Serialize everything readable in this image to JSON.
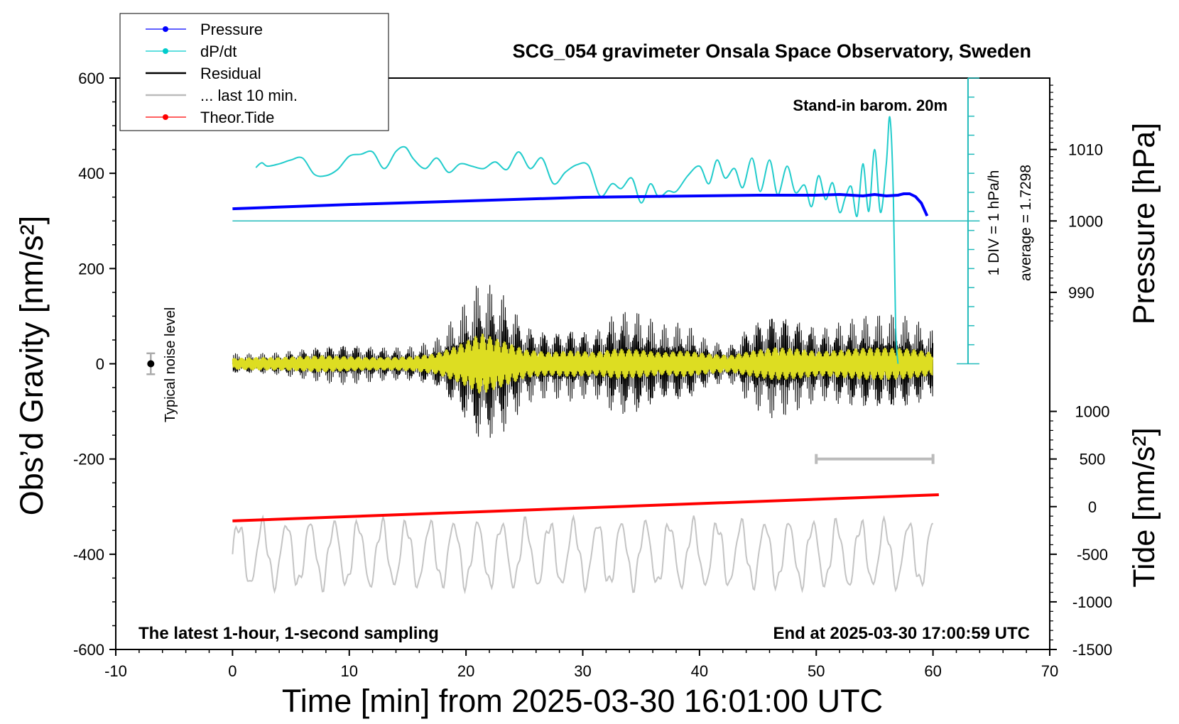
{
  "chart_data": {
    "type": "line",
    "title": "SCG_054 gravimeter Onsala Space Observatory, Sweden",
    "xlabel": "Time [min] from 2025-03-30 16:01:00 UTC",
    "ylabel_left": "Obs’d Gravity [nm/s²]",
    "ylabel_pressure": "Pressure [hPa]",
    "ylabel_tide": "Tide [nm/s²]",
    "xlim": [
      -10,
      70
    ],
    "ylim": [
      -600,
      600
    ],
    "xticks": [
      -10,
      0,
      10,
      20,
      30,
      40,
      50,
      60,
      70
    ],
    "yticks": [
      -600,
      -400,
      -200,
      0,
      200,
      400,
      600
    ],
    "xtick_labels": [
      "-10",
      "0",
      "10",
      "20",
      "30",
      "40",
      "50",
      "60",
      "70"
    ],
    "ytick_labels": [
      "-600",
      "-400",
      "-200",
      "0",
      "200",
      "400",
      "600"
    ],
    "pressure_axis": {
      "values": [
        990,
        1000,
        1010
      ],
      "labels": [
        "990",
        "1000",
        "1010"
      ],
      "gravity_at_1000": 300,
      "gravity_per_hpa": 15
    },
    "tide_axis": {
      "values": [
        -1500,
        -1000,
        -500,
        0,
        500,
        1000
      ],
      "labels": [
        "-1500",
        "-1000",
        "-500",
        "0",
        "500",
        "1000"
      ],
      "gravity_at_0": -300,
      "gravity_per_unit": 0.2
    },
    "legend": {
      "position": "top-left",
      "entries": [
        {
          "label": "Pressure",
          "color": "#0000ff",
          "style": "line-dot"
        },
        {
          "label": "dP/dt",
          "color": "#00cccc",
          "style": "line-dot"
        },
        {
          "label": "Residual",
          "color": "#000000",
          "style": "line"
        },
        {
          "label": "... last 10 min.",
          "color": "#bbbbbb",
          "style": "line"
        },
        {
          "label": "Theor.Tide",
          "color": "#ff0000",
          "style": "line-dot"
        }
      ]
    },
    "annotations": {
      "barometer": "Stand-in barom. 20m",
      "div_label": "1 DIV = 1 hPa/h",
      "average": "average = 1.7298",
      "noise": "Typical noise level",
      "bottom_left": "The latest 1-hour, 1-second sampling",
      "bottom_right": "End at 2025-03-30 17:00:59 UTC"
    },
    "noise_level": {
      "x": -7,
      "y": 0,
      "error": 22
    },
    "last10_range": [
      50,
      60
    ],
    "dpdt_scale": {
      "x": 63,
      "y0": 0,
      "y1": 600,
      "divisions": 15
    },
    "series": [
      {
        "name": "Pressure",
        "unit": "hPa",
        "x": [
          0,
          10,
          20,
          30,
          40,
          45,
          50,
          52,
          54,
          55,
          56,
          57,
          57.5,
          58,
          58.5,
          59,
          59.5
        ],
        "values": [
          1001.7,
          1002.3,
          1002.8,
          1003.3,
          1003.5,
          1003.6,
          1003.6,
          1003.7,
          1003.5,
          1003.7,
          1003.5,
          1003.6,
          1003.8,
          1003.8,
          1003.4,
          1002.5,
          1000.7
        ]
      },
      {
        "name": "dP/dt",
        "unit": "gravity-scaled",
        "x": [
          2,
          2.5,
          3,
          4,
          5,
          6,
          7,
          8,
          9,
          10,
          11,
          12,
          13,
          14,
          14.8,
          15.5,
          16.5,
          17.5,
          18.5,
          19.5,
          20.5,
          21.5,
          22.5,
          23.5,
          24.5,
          25.5,
          26.5,
          27.5,
          28.5,
          29.5,
          30.5,
          31.5,
          32.5,
          33.3,
          34.2,
          35,
          35.8,
          36.5,
          37.3,
          38,
          39,
          40,
          40.8,
          41.5,
          42.2,
          43,
          43.7,
          44.5,
          45.2,
          46,
          46.7,
          47.5,
          48.2,
          49,
          49.6,
          50.2,
          50.8,
          51.4,
          52,
          52.5,
          53,
          53.5,
          54,
          54.5,
          55,
          55.5,
          56,
          56.3,
          56.6,
          56.8,
          57
        ],
        "values": [
          412,
          422,
          415,
          420,
          428,
          432,
          398,
          395,
          408,
          436,
          440,
          445,
          410,
          446,
          455,
          430,
          410,
          432,
          402,
          420,
          415,
          410,
          424,
          408,
          445,
          410,
          432,
          378,
          402,
          418,
          416,
          352,
          378,
          368,
          390,
          338,
          378,
          350,
          363,
          362,
          395,
          415,
          378,
          428,
          390,
          410,
          370,
          432,
          362,
          428,
          355,
          415,
          360,
          375,
          330,
          395,
          345,
          380,
          318,
          350,
          372,
          310,
          420,
          320,
          450,
          318,
          420,
          518,
          360,
          80,
          0
        ]
      },
      {
        "name": "Residual",
        "unit": "nm/s²",
        "x_range": [
          0,
          60
        ],
        "envelope": [
          22,
          22,
          25,
          32,
          40,
          45,
          40,
          36,
          38,
          52,
          110,
          182,
          150,
          85,
          72,
          80,
          70,
          115,
          110,
          82,
          88,
          52,
          40,
          92,
          118,
          100,
          78,
          92,
          102,
          105,
          100,
          72
        ]
      },
      {
        "name": "Filtered residual",
        "color": "#dddd22",
        "x_range": [
          0,
          60
        ],
        "envelope": [
          12,
          14,
          14,
          16,
          18,
          16,
          14,
          14,
          16,
          22,
          40,
          65,
          48,
          30,
          25,
          28,
          25,
          32,
          30,
          24,
          28,
          22,
          18,
          28,
          35,
          32,
          26,
          30,
          34,
          34,
          32,
          24
        ]
      },
      {
        "name": "... last 10 min.",
        "x_range": [
          0,
          60
        ],
        "baseline": -400,
        "amplitude": 75
      },
      {
        "name": "Theor.Tide",
        "x": [
          0,
          60.5
        ],
        "values": [
          -330,
          -275
        ]
      }
    ]
  }
}
